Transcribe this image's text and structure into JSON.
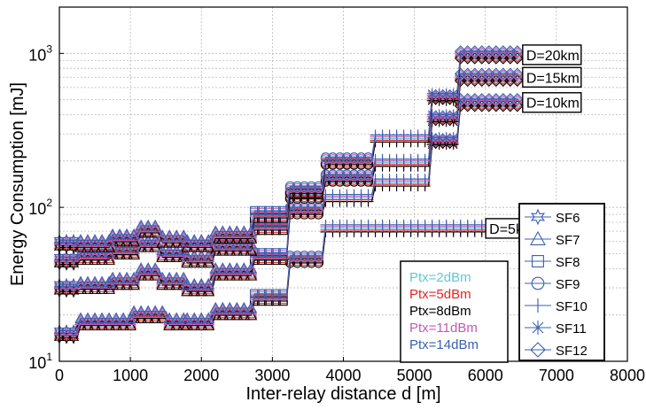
{
  "chart_data": {
    "type": "line",
    "title": "",
    "xlabel": "Inter-relay distance d [m]",
    "ylabel": "Energy Consumption [mJ]",
    "x_scale": "linear",
    "y_scale": "log",
    "xlim": [
      0,
      8000
    ],
    "ylim": [
      10,
      2000
    ],
    "x_ticks": [
      "0",
      "1000",
      "2000",
      "3000",
      "4000",
      "5000",
      "6000",
      "7000",
      "8000"
    ],
    "y_ticks": [
      {
        "base": "10",
        "exp": "1",
        "value": 10
      },
      {
        "base": "10",
        "exp": "2",
        "value": 100
      },
      {
        "base": "10",
        "exp": "3",
        "value": 1000
      }
    ],
    "grid": true,
    "annotations": [
      {
        "text": "D=20km",
        "x": 6500,
        "y": 980
      },
      {
        "text": "D=15km",
        "x": 6500,
        "y": 700
      },
      {
        "text": "D=10km",
        "x": 6500,
        "y": 480
      },
      {
        "text": "D=5km",
        "x": 5980,
        "y": 73
      }
    ],
    "marker_legend": [
      "SF6",
      "SF7",
      "SF8",
      "SF9",
      "SF10",
      "SF11",
      "SF12"
    ],
    "power_legend": [
      {
        "label": "Ptx=2dBm",
        "color": "#5ec8d6"
      },
      {
        "label": "Ptx=5dBm",
        "color": "#e8231f"
      },
      {
        "label": "Ptx=8dBm",
        "color": "#000000"
      },
      {
        "label": "Ptx=11dBm",
        "color": "#c758b5"
      },
      {
        "label": "Ptx=14dBm",
        "color": "#3a5fb0"
      }
    ],
    "series": [
      {
        "segments": [
          {
            "x0": 0,
            "x1": 250,
            "y": 15,
            "m": "SF6"
          },
          {
            "x0": 300,
            "x1": 1000,
            "y": 18,
            "m": "SF7"
          },
          {
            "x0": 1050,
            "x1": 1500,
            "y": 20,
            "m": "SF7"
          },
          {
            "x0": 1550,
            "x1": 1750,
            "y": 18,
            "m": "SF7"
          },
          {
            "x0": 1800,
            "x1": 2150,
            "y": 18,
            "m": "SF7"
          },
          {
            "x0": 2200,
            "x1": 2700,
            "y": 21,
            "m": "SF7"
          },
          {
            "x0": 2750,
            "x1": 3200,
            "y": 26,
            "m": "SF8"
          },
          {
            "x0": 3250,
            "x1": 3700,
            "y": 46,
            "m": "SF9"
          },
          {
            "x0": 3750,
            "x1": 6000,
            "y": 73,
            "m": "SF10"
          }
        ]
      },
      {
        "segments": [
          {
            "x0": 0,
            "x1": 250,
            "y": 30,
            "m": "SF6"
          },
          {
            "x0": 300,
            "x1": 700,
            "y": 31,
            "m": "SF7"
          },
          {
            "x0": 750,
            "x1": 1100,
            "y": 33,
            "m": "SF7"
          },
          {
            "x0": 1150,
            "x1": 1400,
            "y": 38,
            "m": "SF7"
          },
          {
            "x0": 1450,
            "x1": 1750,
            "y": 33,
            "m": "SF7"
          },
          {
            "x0": 1800,
            "x1": 2150,
            "y": 30,
            "m": "SF7"
          },
          {
            "x0": 2200,
            "x1": 2700,
            "y": 38,
            "m": "SF7"
          },
          {
            "x0": 2750,
            "x1": 3200,
            "y": 48,
            "m": "SF8"
          },
          {
            "x0": 3250,
            "x1": 3700,
            "y": 95,
            "m": "SF9"
          },
          {
            "x0": 3750,
            "x1": 4400,
            "y": 115,
            "m": "SF10"
          },
          {
            "x0": 4450,
            "x1": 5200,
            "y": 145,
            "m": "SF10"
          },
          {
            "x0": 5250,
            "x1": 5600,
            "y": 270,
            "m": "SF11"
          },
          {
            "x0": 5650,
            "x1": 6450,
            "y": 480,
            "m": "SF12"
          }
        ]
      },
      {
        "segments": [
          {
            "x0": 0,
            "x1": 250,
            "y": 45,
            "m": "SF6"
          },
          {
            "x0": 300,
            "x1": 700,
            "y": 48,
            "m": "SF7"
          },
          {
            "x0": 750,
            "x1": 1100,
            "y": 52,
            "m": "SF7"
          },
          {
            "x0": 1150,
            "x1": 1400,
            "y": 58,
            "m": "SF7"
          },
          {
            "x0": 1450,
            "x1": 1750,
            "y": 50,
            "m": "SF7"
          },
          {
            "x0": 1800,
            "x1": 2150,
            "y": 46,
            "m": "SF7"
          },
          {
            "x0": 2200,
            "x1": 2700,
            "y": 55,
            "m": "SF7"
          },
          {
            "x0": 2750,
            "x1": 3200,
            "y": 75,
            "m": "SF8"
          },
          {
            "x0": 3250,
            "x1": 3700,
            "y": 120,
            "m": "SF9"
          },
          {
            "x0": 3750,
            "x1": 4400,
            "y": 155,
            "m": "SF9"
          },
          {
            "x0": 4450,
            "x1": 5200,
            "y": 195,
            "m": "SF10"
          },
          {
            "x0": 5250,
            "x1": 5600,
            "y": 380,
            "m": "SF11"
          },
          {
            "x0": 5650,
            "x1": 6450,
            "y": 700,
            "m": "SF12"
          }
        ]
      },
      {
        "segments": [
          {
            "x0": 0,
            "x1": 250,
            "y": 58,
            "m": "SF6"
          },
          {
            "x0": 300,
            "x1": 700,
            "y": 58,
            "m": "SF7"
          },
          {
            "x0": 750,
            "x1": 1100,
            "y": 63,
            "m": "SF7"
          },
          {
            "x0": 1150,
            "x1": 1400,
            "y": 72,
            "m": "SF7"
          },
          {
            "x0": 1450,
            "x1": 1750,
            "y": 62,
            "m": "SF7"
          },
          {
            "x0": 1800,
            "x1": 2150,
            "y": 58,
            "m": "SF7"
          },
          {
            "x0": 2200,
            "x1": 2700,
            "y": 66,
            "m": "SF7"
          },
          {
            "x0": 2750,
            "x1": 3200,
            "y": 90,
            "m": "SF8"
          },
          {
            "x0": 3250,
            "x1": 3700,
            "y": 130,
            "m": "SF9"
          },
          {
            "x0": 3750,
            "x1": 4400,
            "y": 200,
            "m": "SF9"
          },
          {
            "x0": 4450,
            "x1": 5200,
            "y": 280,
            "m": "SF10"
          },
          {
            "x0": 5250,
            "x1": 5600,
            "y": 520,
            "m": "SF11"
          },
          {
            "x0": 5650,
            "x1": 6450,
            "y": 980,
            "m": "SF12"
          }
        ]
      }
    ]
  }
}
